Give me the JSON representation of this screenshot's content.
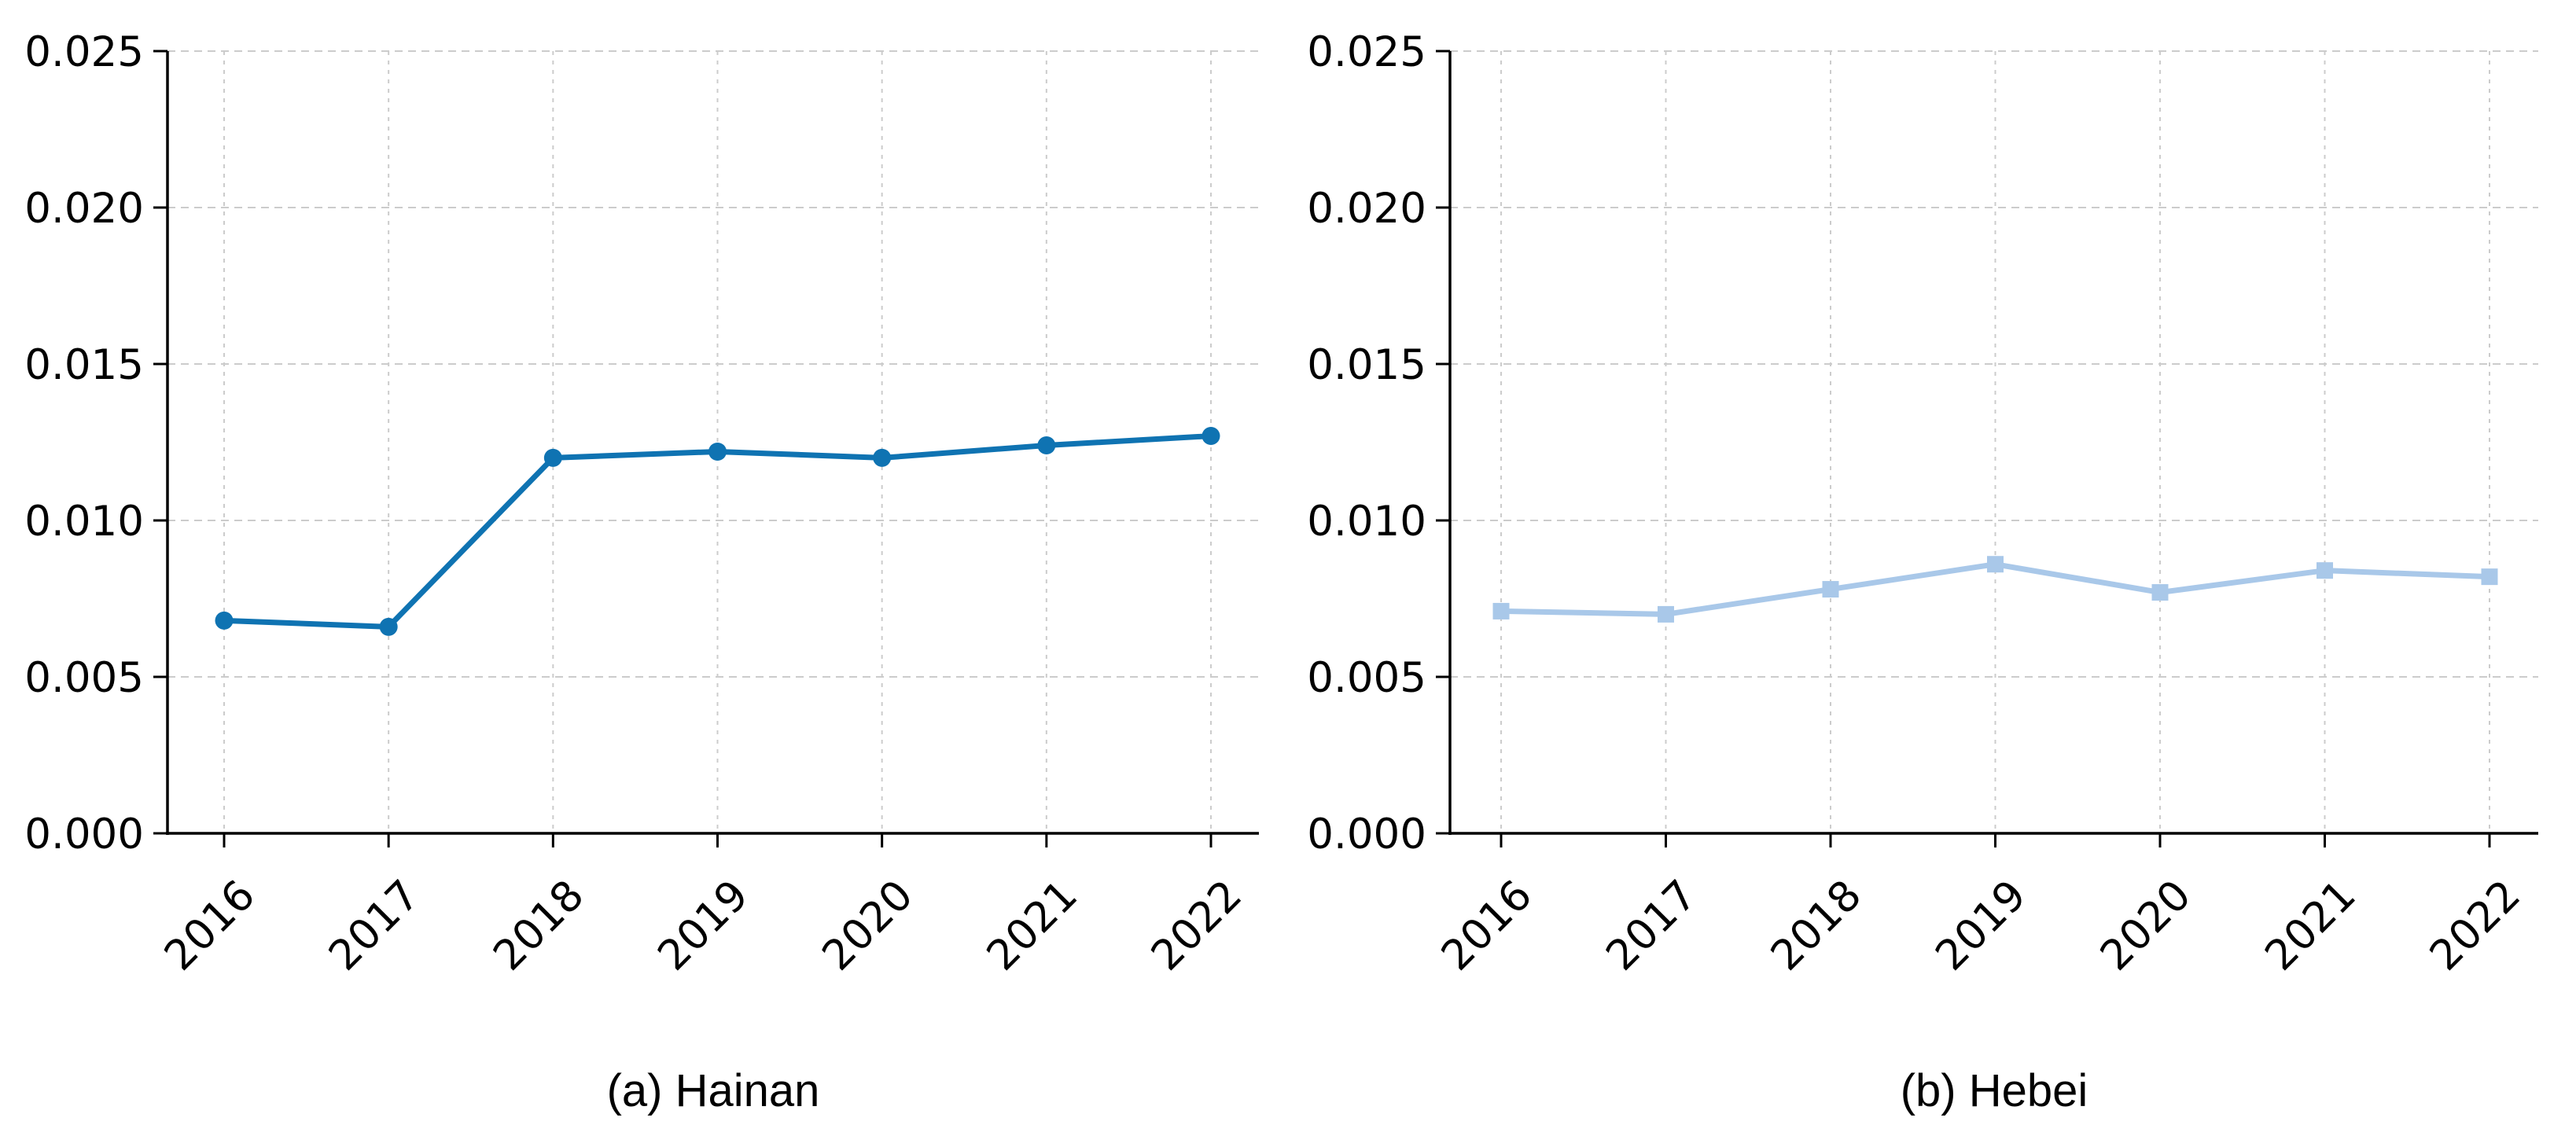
{
  "figure": {
    "background": "#ffffff",
    "text_color": "#000000",
    "grid_color": "#cccccc"
  },
  "chart_data": [
    {
      "type": "line",
      "title": "(a) Hainan",
      "categories": [
        "2016",
        "2017",
        "2018",
        "2019",
        "2020",
        "2021",
        "2022"
      ],
      "values": [
        0.0068,
        0.0066,
        0.012,
        0.0122,
        0.012,
        0.0124,
        0.0127
      ],
      "line_color": "#0f73b2",
      "marker": "circle",
      "ylim": [
        0.0,
        0.025
      ],
      "yticks": [
        "0.000",
        "0.005",
        "0.010",
        "0.015",
        "0.020",
        "0.025"
      ],
      "xtick_rotation": 45,
      "grid": "on",
      "legend": "none"
    },
    {
      "type": "line",
      "title": "(b) Hebei",
      "categories": [
        "2016",
        "2017",
        "2018",
        "2019",
        "2020",
        "2021",
        "2022"
      ],
      "values": [
        0.0071,
        0.007,
        0.0078,
        0.0086,
        0.0077,
        0.0084,
        0.0082
      ],
      "line_color": "#a9c8e9",
      "marker": "square",
      "ylim": [
        0.0,
        0.025
      ],
      "yticks": [
        "0.000",
        "0.005",
        "0.010",
        "0.015",
        "0.020",
        "0.025"
      ],
      "xtick_rotation": 45,
      "grid": "on",
      "legend": "none"
    }
  ]
}
